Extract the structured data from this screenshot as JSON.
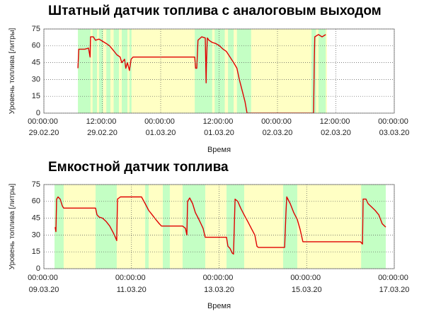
{
  "chart_data": [
    {
      "type": "line",
      "title": "Штатный датчик топлива с аналоговым выходом",
      "x_label": "Время",
      "y_label": "Уровень топлива [литры]",
      "xlim": [
        "2020-02-29T00:00",
        "2020-03-03T00:00"
      ],
      "xticks": [
        {
          "value": "2020-02-29T00:00",
          "label": "00:00:00 29.02.20"
        },
        {
          "value": "2020-02-29T12:00",
          "label": "12:00:00 29.02.20"
        },
        {
          "value": "2020-03-01T00:00",
          "label": "00:00:00 01.03.20"
        },
        {
          "value": "2020-03-01T12:00",
          "label": "12:00:00 01.03.20"
        },
        {
          "value": "2020-03-02T00:00",
          "label": "00:00:00 02.03.20"
        },
        {
          "value": "2020-03-02T12:00",
          "label": "12:00:00 02.03.20"
        },
        {
          "value": "2020-03-03T00:00",
          "label": "00:00:00 03.03.20"
        }
      ],
      "ylim": [
        0,
        75
      ],
      "yticks": [
        0,
        15,
        30,
        45,
        60,
        75
      ],
      "grid": true,
      "background": {
        "color": "#ffffc4",
        "start": "2020-02-29T07:00",
        "end": "2020-03-02T10:10"
      },
      "periods": {
        "color": "#c4ffc4",
        "spans": [
          [
            "2020-02-29T07:00",
            "2020-02-29T09:35"
          ],
          [
            "2020-02-29T10:00",
            "2020-02-29T10:55"
          ],
          [
            "2020-02-29T11:20",
            "2020-02-29T12:10"
          ],
          [
            "2020-02-29T12:50",
            "2020-02-29T13:40"
          ],
          [
            "2020-02-29T14:20",
            "2020-02-29T15:25"
          ],
          [
            "2020-02-29T16:00",
            "2020-02-29T17:10"
          ],
          [
            "2020-02-29T17:35",
            "2020-02-29T18:00"
          ],
          [
            "2020-03-01T07:00",
            "2020-03-01T10:35"
          ],
          [
            "2020-03-01T11:05",
            "2020-03-01T13:10"
          ],
          [
            "2020-03-01T13:50",
            "2020-03-01T15:00"
          ],
          [
            "2020-03-01T15:40",
            "2020-03-01T18:35"
          ],
          [
            "2020-03-02T07:00",
            "2020-03-02T07:55"
          ],
          [
            "2020-03-02T08:25",
            "2020-03-02T09:55"
          ]
        ]
      },
      "series": [
        {
          "color": "#e00000",
          "x": [
            "2020-02-29T07:00",
            "2020-02-29T07:10",
            "2020-02-29T08:25",
            "2020-02-29T09:10",
            "2020-02-29T09:30",
            "2020-02-29T09:35",
            "2020-02-29T10:10",
            "2020-02-29T10:35",
            "2020-02-29T11:20",
            "2020-02-29T12:05",
            "2020-02-29T12:50",
            "2020-02-29T13:30",
            "2020-02-29T14:15",
            "2020-02-29T15:00",
            "2020-02-29T15:40",
            "2020-02-29T16:00",
            "2020-02-29T16:35",
            "2020-02-29T16:50",
            "2020-02-29T17:10",
            "2020-02-29T17:35",
            "2020-02-29T17:55",
            "2020-02-29T18:20",
            "2020-03-01T07:00",
            "2020-03-01T07:10",
            "2020-03-01T07:25",
            "2020-03-01T07:40",
            "2020-03-01T08:25",
            "2020-03-01T09:10",
            "2020-03-01T09:20",
            "2020-03-01T09:25",
            "2020-03-01T09:35",
            "2020-03-01T09:55",
            "2020-03-01T10:35",
            "2020-03-01T11:20",
            "2020-03-01T12:05",
            "2020-03-01T12:50",
            "2020-03-01T13:30",
            "2020-03-01T14:15",
            "2020-03-01T15:00",
            "2020-03-01T15:40",
            "2020-03-01T16:10",
            "2020-03-01T16:45",
            "2020-03-01T17:20",
            "2020-03-01T17:45",
            "2020-03-01T18:00",
            "2020-03-02T07:25",
            "2020-03-02T07:35",
            "2020-03-02T07:40",
            "2020-03-02T08:25",
            "2020-03-02T09:10",
            "2020-03-02T09:55"
          ],
          "values": [
            40,
            57,
            57,
            58,
            50,
            68,
            68,
            65,
            66,
            64,
            62,
            60,
            56,
            52,
            50,
            45,
            48,
            40,
            45,
            38,
            48,
            50,
            50,
            40,
            40,
            65,
            68,
            67,
            27,
            45,
            67,
            65,
            63,
            62,
            60,
            57,
            55,
            50,
            45,
            40,
            30,
            20,
            10,
            0,
            0,
            0,
            50,
            68,
            70,
            68,
            70
          ]
        }
      ]
    },
    {
      "type": "line",
      "title": "Емкостной датчик топлива",
      "x_label": "Время",
      "y_label": "Уровень топлива [литры]",
      "xlim": [
        "2020-03-09T00:00",
        "2020-03-17T00:00"
      ],
      "xticks": [
        {
          "value": "2020-03-09T00:00",
          "label": "00:00:00 09.03.20"
        },
        {
          "value": "2020-03-11T00:00",
          "label": "00:00:00 11.03.20"
        },
        {
          "value": "2020-03-13T00:00",
          "label": "00:00:00 13.03.20"
        },
        {
          "value": "2020-03-15T00:00",
          "label": "00:00:00 15.03.20"
        },
        {
          "value": "2020-03-17T00:00",
          "label": "00:00:00 17.03.20"
        }
      ],
      "ylim": [
        0,
        75
      ],
      "yticks": [
        0,
        15,
        30,
        45,
        60,
        75
      ],
      "grid": true,
      "background": {
        "color": "#ffffc4",
        "start": "2020-03-09T05:50",
        "end": "2020-03-16T19:20"
      },
      "periods": {
        "color": "#c4ffc4",
        "spans": [
          [
            "2020-03-09T05:50",
            "2020-03-09T10:50"
          ],
          [
            "2020-03-10T04:20",
            "2020-03-10T15:55"
          ],
          [
            "2020-03-11T07:30",
            "2020-03-11T09:25"
          ],
          [
            "2020-03-11T17:10",
            "2020-03-11T21:00"
          ],
          [
            "2020-03-12T04:00",
            "2020-03-12T16:25"
          ],
          [
            "2020-03-13T04:05",
            "2020-03-13T13:45"
          ],
          [
            "2020-03-14T11:05",
            "2020-03-14T18:50"
          ],
          [
            "2020-03-16T05:50",
            "2020-03-16T19:20"
          ]
        ]
      },
      "series": [
        {
          "color": "#e00000",
          "x": [
            "2020-03-09T06:10",
            "2020-03-09T06:35",
            "2020-03-09T07:00",
            "2020-03-09T07:45",
            "2020-03-09T08:55",
            "2020-03-09T10:05",
            "2020-03-09T10:50",
            "2020-03-10T04:20",
            "2020-03-10T05:05",
            "2020-03-10T06:15",
            "2020-03-10T08:10",
            "2020-03-10T10:10",
            "2020-03-10T12:05",
            "2020-03-10T14:00",
            "2020-03-10T15:10",
            "2020-03-10T15:55",
            "2020-03-10T16:20",
            "2020-03-10T17:55",
            "2020-03-11T05:30",
            "2020-03-11T07:30",
            "2020-03-11T09:25",
            "2020-03-11T11:20",
            "2020-03-11T13:15",
            "2020-03-11T15:15",
            "2020-03-11T16:25",
            "2020-03-12T04:00",
            "2020-03-12T05:35",
            "2020-03-12T06:20",
            "2020-03-12T06:45",
            "2020-03-12T07:55",
            "2020-03-12T09:30",
            "2020-03-12T11:00",
            "2020-03-12T12:35",
            "2020-03-12T14:05",
            "2020-03-12T15:15",
            "2020-03-12T16:25",
            "2020-03-13T04:05",
            "2020-03-13T04:50",
            "2020-03-13T06:00",
            "2020-03-13T07:10",
            "2020-03-13T07:55",
            "2020-03-13T08:45",
            "2020-03-13T10:15",
            "2020-03-13T11:50",
            "2020-03-13T13:45",
            "2020-03-13T15:45",
            "2020-03-13T17:40",
            "2020-03-13T19:35",
            "2020-03-13T20:45",
            "2020-03-13T21:30",
            "2020-03-14T11:55",
            "2020-03-14T12:40",
            "2020-03-14T13:05",
            "2020-03-14T15:00",
            "2020-03-14T16:55",
            "2020-03-14T18:50",
            "2020-03-14T20:25",
            "2020-03-14T21:55",
            "2020-03-16T05:25",
            "2020-03-16T06:35",
            "2020-03-16T06:55",
            "2020-03-16T08:30",
            "2020-03-16T09:40",
            "2020-03-16T11:35",
            "2020-03-16T13:30",
            "2020-03-16T15:30",
            "2020-03-16T17:25",
            "2020-03-16T19:20"
          ],
          "values": [
            37,
            33,
            62,
            64,
            62,
            56,
            54,
            54,
            48,
            46,
            45,
            42,
            38,
            32,
            28,
            25,
            62,
            64,
            64,
            58,
            52,
            48,
            44,
            40,
            38,
            38,
            36,
            30,
            60,
            63,
            58,
            50,
            45,
            40,
            36,
            28,
            28,
            20,
            18,
            14,
            13,
            62,
            60,
            54,
            48,
            42,
            36,
            30,
            20,
            19,
            19,
            50,
            64,
            58,
            50,
            44,
            35,
            24,
            24,
            22,
            62,
            62,
            58,
            55,
            52,
            48,
            40,
            37
          ]
        }
      ]
    }
  ]
}
